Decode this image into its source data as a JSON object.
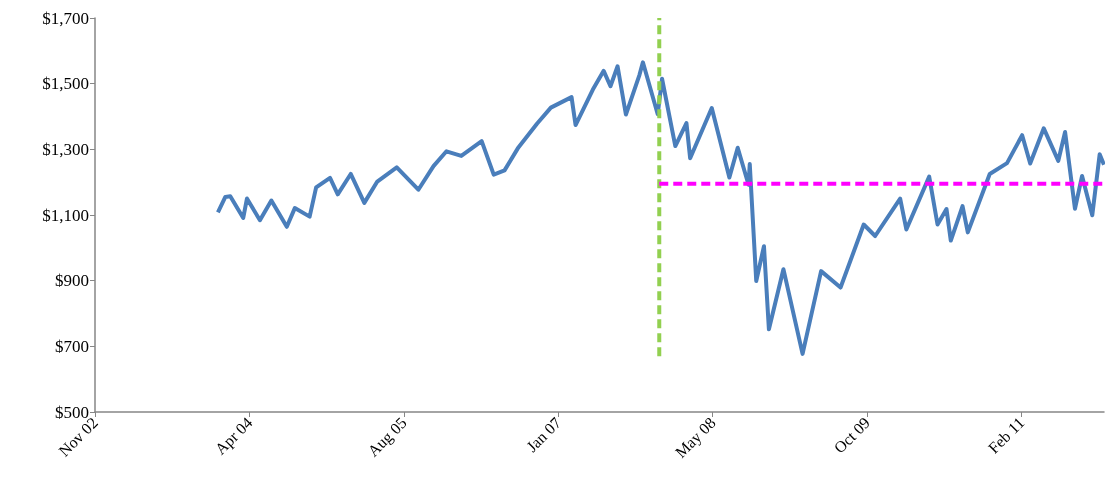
{
  "chart_data": {
    "type": "line",
    "grid": false,
    "marker": "none",
    "xlim": [
      "2002-11-30",
      "2011-11-10"
    ],
    "xticks": [
      {
        "value": "2002-11-30",
        "label": "Nov 02"
      },
      {
        "value": "2004-04-13",
        "label": "Apr 04"
      },
      {
        "value": "2005-08-26",
        "label": "Aug 05"
      },
      {
        "value": "2007-01-08",
        "label": "Jan 07"
      },
      {
        "value": "2008-05-22",
        "label": "May 08"
      },
      {
        "value": "2009-10-04",
        "label": "Oct 09"
      },
      {
        "value": "2011-02-16",
        "label": "Feb 11"
      }
    ],
    "ylim": [
      500,
      1700
    ],
    "yticks": [
      {
        "value": 500,
        "label": "$500"
      },
      {
        "value": 700,
        "label": "$700"
      },
      {
        "value": 900,
        "label": "$900"
      },
      {
        "value": 1100,
        "label": "$1,100"
      },
      {
        "value": 1300,
        "label": "$1,300"
      },
      {
        "value": 1500,
        "label": "$1,500"
      },
      {
        "value": 1700,
        "label": "$1,700"
      }
    ],
    "series": [
      {
        "color": "#4a7ebb",
        "line_style": "solid",
        "x": [
          "2004-01-02",
          "2004-01-26",
          "2004-02-11",
          "2004-03-24",
          "2004-04-05",
          "2004-05-17",
          "2004-06-23",
          "2004-08-12",
          "2004-09-07",
          "2004-10-25",
          "2004-11-15",
          "2004-12-30",
          "2005-01-24",
          "2005-03-07",
          "2005-04-20",
          "2005-06-01",
          "2005-08-03",
          "2005-10-12",
          "2005-11-30",
          "2006-01-11",
          "2006-02-28",
          "2006-05-05",
          "2006-06-13",
          "2006-07-18",
          "2006-08-30",
          "2006-10-31",
          "2006-12-15",
          "2007-02-20",
          "2007-03-05",
          "2007-04-30",
          "2007-06-04",
          "2007-06-26",
          "2007-07-19",
          "2007-08-15",
          "2007-09-28",
          "2007-10-09",
          "2007-11-26",
          "2007-12-10",
          "2008-01-22",
          "2008-02-27",
          "2008-03-10",
          "2008-05-19",
          "2008-07-15",
          "2008-08-11",
          "2008-09-15",
          "2008-09-19",
          "2008-10-10",
          "2008-11-04",
          "2008-11-20",
          "2009-01-06",
          "2009-03-09",
          "2009-05-08",
          "2009-07-10",
          "2009-09-23",
          "2009-10-30",
          "2010-01-19",
          "2010-02-08",
          "2010-04-23",
          "2010-05-20",
          "2010-06-18",
          "2010-07-02",
          "2010-08-09",
          "2010-08-26",
          "2010-11-05",
          "2010-12-31",
          "2011-02-18",
          "2011-03-16",
          "2011-04-29",
          "2011-06-15",
          "2011-07-07",
          "2011-08-08",
          "2011-08-31",
          "2011-10-03",
          "2011-10-27",
          "2011-11-10"
        ],
        "values": [
          1108,
          1155,
          1157,
          1091,
          1150,
          1084,
          1144,
          1064,
          1121,
          1095,
          1184,
          1213,
          1163,
          1225,
          1137,
          1202,
          1245,
          1177,
          1249,
          1294,
          1280,
          1325,
          1223,
          1236,
          1303,
          1378,
          1427,
          1459,
          1374,
          1482,
          1539,
          1492,
          1553,
          1406,
          1527,
          1565,
          1407,
          1515,
          1310,
          1380,
          1273,
          1426,
          1214,
          1305,
          1192,
          1255,
          899,
          1005,
          752,
          935,
          677,
          929,
          879,
          1071,
          1036,
          1150,
          1056,
          1217,
          1071,
          1118,
          1022,
          1127,
          1047,
          1225,
          1258,
          1343,
          1257,
          1364,
          1265,
          1353,
          1119,
          1219,
          1099,
          1285,
          1253
        ]
      },
      {
        "color": "#92d050",
        "line_style": "dashed",
        "x": [
          "2007-12-01",
          "2007-12-01"
        ],
        "values": [
          670,
          1700
        ]
      },
      {
        "color": "#ff00ff",
        "line_style": "dashed",
        "x": [
          "2007-12-01",
          "2011-11-10"
        ],
        "values": [
          1195,
          1195
        ]
      }
    ]
  }
}
